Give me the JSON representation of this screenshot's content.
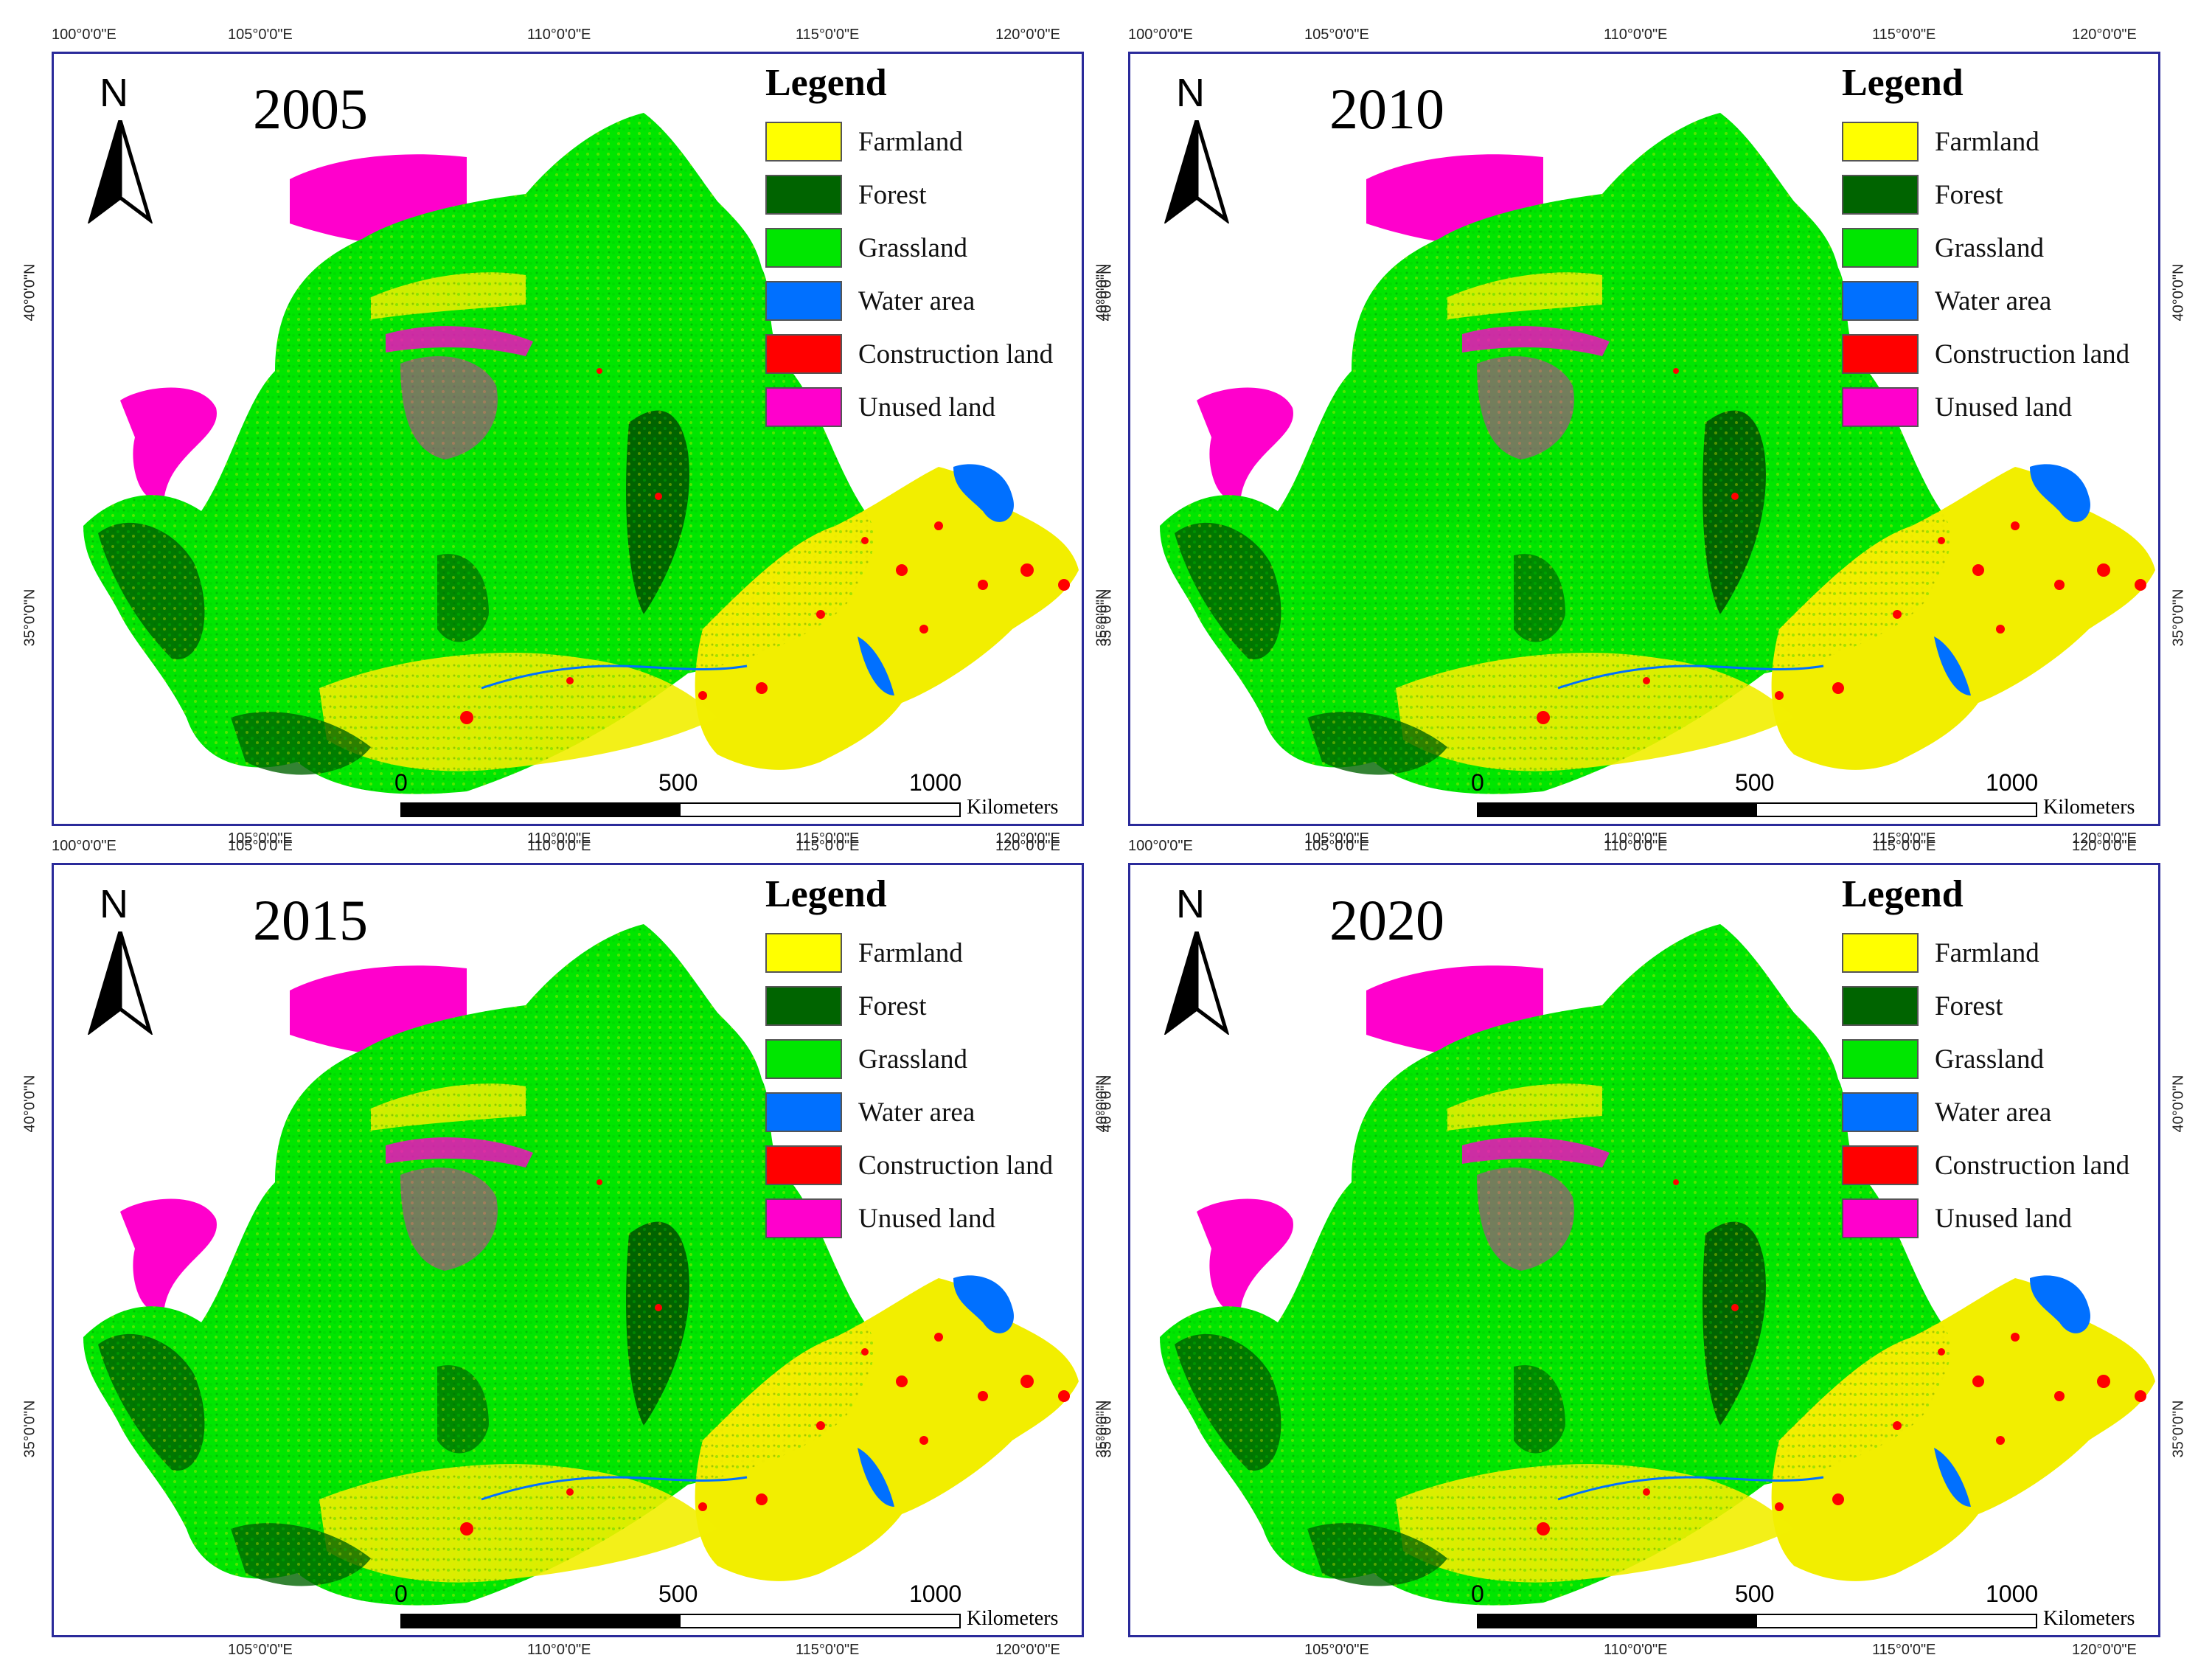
{
  "legend": {
    "title": "Legend",
    "items": [
      {
        "label": "Farmland",
        "color": "#ffff00"
      },
      {
        "label": "Forest",
        "color": "#006400"
      },
      {
        "label": "Grassland",
        "color": "#00e600"
      },
      {
        "label": "Water area",
        "color": "#0070ff"
      },
      {
        "label": "Construction land",
        "color": "#ff0000"
      },
      {
        "label": "Unused land",
        "color": "#ff00cc"
      }
    ]
  },
  "north_label": "N",
  "scalebar": {
    "ticks": [
      "0",
      "500",
      "1000"
    ],
    "unit": "Kilometers"
  },
  "graticule": {
    "lon": [
      "100°0'0\"E",
      "105°0'0\"E",
      "110°0'0\"E",
      "115°0'0\"E",
      "120°0'0\"E"
    ],
    "lat": [
      "40°0'0\"N",
      "35°0'0\"N"
    ]
  },
  "panels": [
    {
      "year": "2005"
    },
    {
      "year": "2010"
    },
    {
      "year": "2015"
    },
    {
      "year": "2020"
    }
  ]
}
